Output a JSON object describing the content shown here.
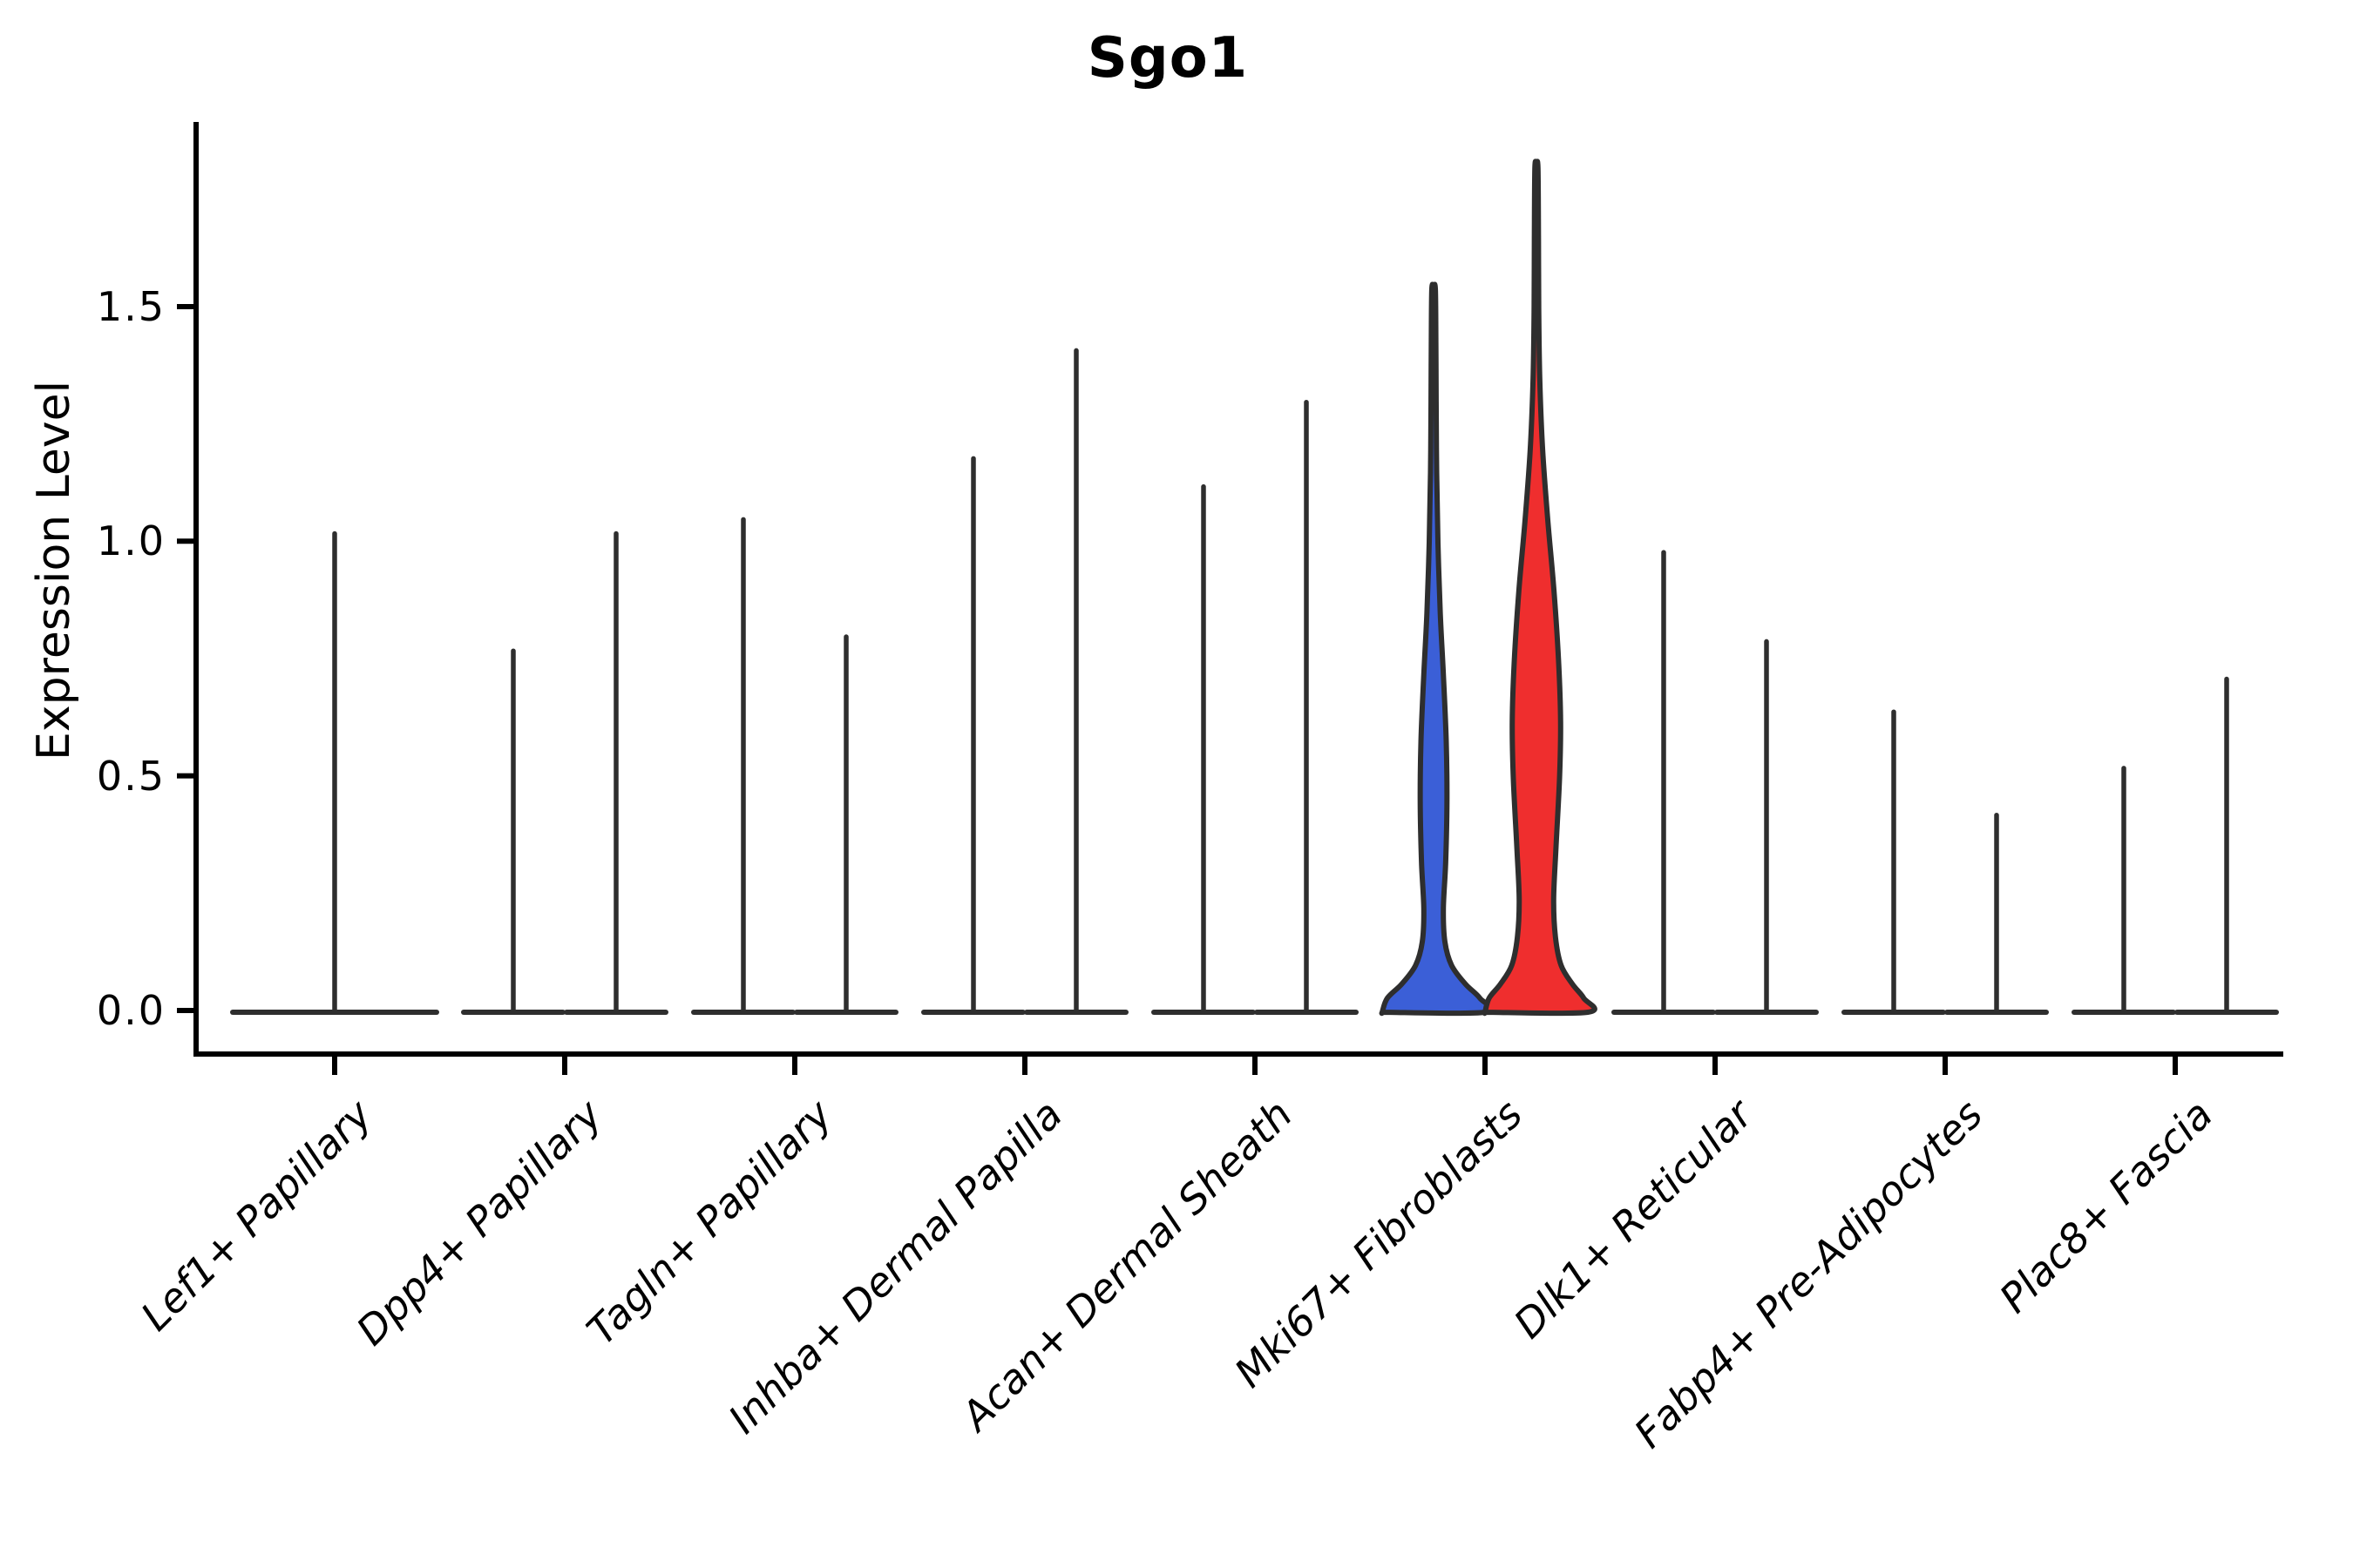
{
  "chart_data": {
    "type": "violin",
    "title": "Sgo1",
    "ylabel": "Expression Level",
    "xlabel": "",
    "legend": "none",
    "grid": false,
    "ylim": [
      -0.09,
      1.9
    ],
    "y_ticks": [
      {
        "value": 0.0,
        "label": "0.0"
      },
      {
        "value": 0.5,
        "label": "0.5"
      },
      {
        "value": 1.0,
        "label": "1.0"
      },
      {
        "value": 1.5,
        "label": "1.5"
      }
    ],
    "categories": [
      "Lef1+ Papillary",
      "Dpp4+ Papillary",
      "Tagln+ Papillary",
      "Inhba+ Dermal Papilla",
      "Acan+ Dermal Sheath",
      "Mki67+ Fibroblasts",
      "Dlk1+ Reticular",
      "Fabp4+ Pre-Adipocytes",
      "Plac8+ Fascia"
    ],
    "colors": {
      "outline": "#2e2e2e",
      "axis": "#000000",
      "blue_fill": "#3b5fd7",
      "red_fill": "#ef2e2e"
    },
    "violins": [
      {
        "category_index": 0,
        "category": "Lef1+ Papillary",
        "group": "single",
        "style": "spike",
        "max": 1.02
      },
      {
        "category_index": 1,
        "category": "Dpp4+ Papillary",
        "group": "left",
        "style": "spike",
        "max": 0.77
      },
      {
        "category_index": 1,
        "category": "Dpp4+ Papillary",
        "group": "right",
        "style": "spike",
        "max": 1.02
      },
      {
        "category_index": 2,
        "category": "Tagln+ Papillary",
        "group": "left",
        "style": "spike",
        "max": 1.05
      },
      {
        "category_index": 2,
        "category": "Tagln+ Papillary",
        "group": "right",
        "style": "spike",
        "max": 0.8
      },
      {
        "category_index": 3,
        "category": "Inhba+ Dermal Papilla",
        "group": "left",
        "style": "spike",
        "max": 1.18
      },
      {
        "category_index": 3,
        "category": "Inhba+ Dermal Papilla",
        "group": "right",
        "style": "spike",
        "max": 1.41
      },
      {
        "category_index": 4,
        "category": "Acan+ Dermal Sheath",
        "group": "left",
        "style": "spike",
        "max": 1.12
      },
      {
        "category_index": 4,
        "category": "Acan+ Dermal Sheath",
        "group": "right",
        "style": "spike",
        "max": 1.3
      },
      {
        "category_index": 5,
        "category": "Mki67+ Fibroblasts",
        "group": "left",
        "style": "filled",
        "max": 1.54,
        "fill": "#3b5fd7",
        "profile": [
          [
            0.0,
            1.0
          ],
          [
            0.03,
            0.9
          ],
          [
            0.06,
            0.62
          ],
          [
            0.1,
            0.35
          ],
          [
            0.15,
            0.22
          ],
          [
            0.22,
            0.19
          ],
          [
            0.32,
            0.235
          ],
          [
            0.45,
            0.26
          ],
          [
            0.58,
            0.245
          ],
          [
            0.72,
            0.19
          ],
          [
            0.85,
            0.13
          ],
          [
            1.0,
            0.085
          ],
          [
            1.15,
            0.06
          ],
          [
            1.3,
            0.05
          ],
          [
            1.42,
            0.045
          ],
          [
            1.54,
            0.035
          ]
        ]
      },
      {
        "category_index": 5,
        "category": "Mki67+ Fibroblasts",
        "group": "right",
        "style": "filled",
        "max": 1.8,
        "fill": "#ef2e2e",
        "profile": [
          [
            0.0,
            1.0
          ],
          [
            0.03,
            0.92
          ],
          [
            0.06,
            0.7
          ],
          [
            0.1,
            0.48
          ],
          [
            0.16,
            0.37
          ],
          [
            0.24,
            0.335
          ],
          [
            0.35,
            0.38
          ],
          [
            0.5,
            0.45
          ],
          [
            0.62,
            0.47
          ],
          [
            0.75,
            0.43
          ],
          [
            0.9,
            0.34
          ],
          [
            1.05,
            0.22
          ],
          [
            1.2,
            0.12
          ],
          [
            1.35,
            0.065
          ],
          [
            1.5,
            0.045
          ],
          [
            1.65,
            0.04
          ],
          [
            1.8,
            0.03
          ]
        ]
      },
      {
        "category_index": 6,
        "category": "Dlk1+ Reticular",
        "group": "left",
        "style": "spike",
        "max": 0.98
      },
      {
        "category_index": 6,
        "category": "Dlk1+ Reticular",
        "group": "right",
        "style": "spike",
        "max": 0.79
      },
      {
        "category_index": 7,
        "category": "Fabp4+ Pre-Adipocytes",
        "group": "left",
        "style": "spike",
        "max": 0.64
      },
      {
        "category_index": 7,
        "category": "Fabp4+ Pre-Adipocytes",
        "group": "right",
        "style": "spike",
        "max": 0.42
      },
      {
        "category_index": 8,
        "category": "Plac8+ Fascia",
        "group": "left",
        "style": "spike",
        "max": 0.52
      },
      {
        "category_index": 8,
        "category": "Plac8+ Fascia",
        "group": "right",
        "style": "spike",
        "max": 0.71
      }
    ]
  }
}
